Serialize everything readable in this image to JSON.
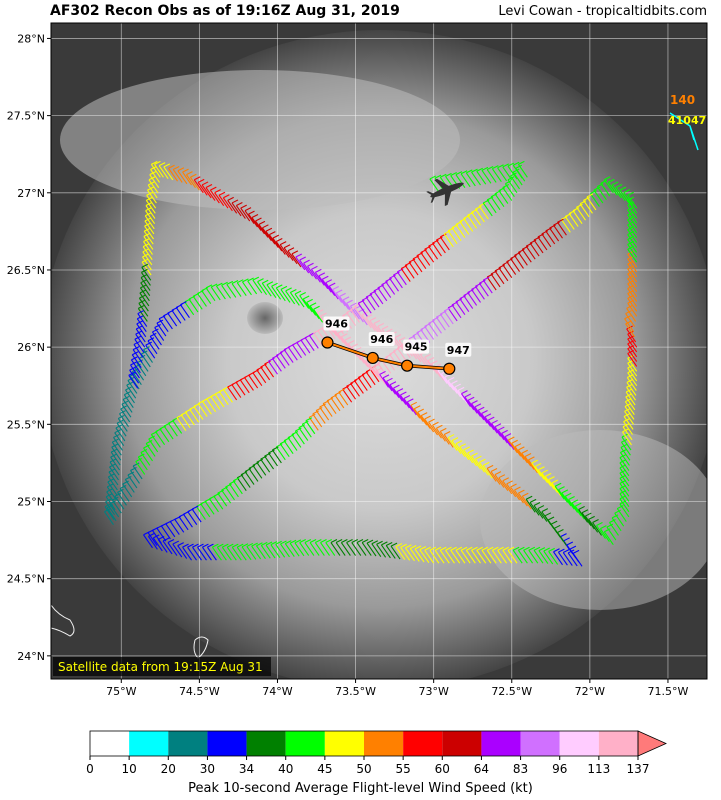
{
  "header": {
    "title": "AF302 Recon Obs as of 19:16Z Aug 31, 2019",
    "credit": "Levi Cowan - tropicaltidbits.com"
  },
  "satellite_note": "Satellite data from 19:15Z Aug 31",
  "axes": {
    "lon_ticks": [
      "75°W",
      "74.5°W",
      "74°W",
      "73.5°W",
      "73°W",
      "72.5°W",
      "72°W",
      "71.5°W"
    ],
    "lat_ticks": [
      "28°N",
      "27.5°N",
      "27°N",
      "26.5°N",
      "26°N",
      "25.5°N",
      "25°N",
      "24.5°N",
      "24°N"
    ],
    "lon_range": [
      -75.45,
      -71.25
    ],
    "lat_range": [
      23.85,
      28.1
    ]
  },
  "pressure_obs": [
    {
      "label": "946",
      "lon": -73.68,
      "lat": 26.03
    },
    {
      "label": "946",
      "lon": -73.39,
      "lat": 25.93
    },
    {
      "label": "945",
      "lon": -73.17,
      "lat": 25.88
    },
    {
      "label": "947",
      "lon": -72.9,
      "lat": 25.86
    }
  ],
  "buoy": {
    "id": "41047",
    "value": "140",
    "lon": -71.45,
    "lat": 27.48
  },
  "flight_track": [
    {
      "lon": -74.73,
      "lat": 27.1,
      "color": "#ffff00"
    },
    {
      "lon": -74.55,
      "lat": 27.05,
      "color": "#ff8000"
    },
    {
      "lon": -74.4,
      "lat": 26.95,
      "color": "#ff0000"
    },
    {
      "lon": -74.15,
      "lat": 26.8,
      "color": "#cc0000"
    },
    {
      "lon": -73.95,
      "lat": 26.6,
      "color": "#cc0000"
    },
    {
      "lon": -73.7,
      "lat": 26.4,
      "color": "#aa00ff"
    },
    {
      "lon": -73.5,
      "lat": 26.2,
      "color": "#d070ff"
    },
    {
      "lon": -73.3,
      "lat": 26.05,
      "color": "#ffb0c8"
    },
    {
      "lon": -73.0,
      "lat": 25.85,
      "color": "#ffb0c8"
    },
    {
      "lon": -72.85,
      "lat": 25.7,
      "color": "#ffccff"
    },
    {
      "lon": -72.7,
      "lat": 25.55,
      "color": "#aa00ff"
    },
    {
      "lon": -72.55,
      "lat": 25.4,
      "color": "#aa00ff"
    },
    {
      "lon": -72.4,
      "lat": 25.25,
      "color": "#ff8000"
    },
    {
      "lon": -72.25,
      "lat": 25.1,
      "color": "#ffff00"
    },
    {
      "lon": -72.1,
      "lat": 24.95,
      "color": "#00ff00"
    },
    {
      "lon": -71.95,
      "lat": 24.8,
      "color": "#008000"
    },
    {
      "lon": -71.85,
      "lat": 24.72,
      "color": "#00ff00"
    },
    {
      "lon": -71.75,
      "lat": 24.9,
      "color": "#00ff00"
    },
    {
      "lon": -71.75,
      "lat": 25.2,
      "color": "#00ff00"
    },
    {
      "lon": -71.72,
      "lat": 25.5,
      "color": "#ffff00"
    },
    {
      "lon": -71.7,
      "lat": 25.75,
      "color": "#ffff00"
    },
    {
      "lon": -71.7,
      "lat": 26.0,
      "color": "#ff0000"
    },
    {
      "lon": -71.72,
      "lat": 26.1,
      "color": "#ff8000"
    },
    {
      "lon": -71.7,
      "lat": 26.2,
      "color": "#ff8000"
    },
    {
      "lon": -71.7,
      "lat": 26.9,
      "color": "#00ff00"
    },
    {
      "lon": -71.85,
      "lat": 27.0,
      "color": "#00ff00"
    },
    {
      "lon": -72.05,
      "lat": 26.8,
      "color": "#ffff00"
    },
    {
      "lon": -72.25,
      "lat": 26.65,
      "color": "#cc0000"
    },
    {
      "lon": -72.5,
      "lat": 26.45,
      "color": "#cc0000"
    },
    {
      "lon": -72.75,
      "lat": 26.25,
      "color": "#aa00ff"
    },
    {
      "lon": -73.0,
      "lat": 26.05,
      "color": "#d070ff"
    },
    {
      "lon": -73.25,
      "lat": 25.85,
      "color": "#ffb0c8"
    },
    {
      "lon": -73.45,
      "lat": 25.7,
      "color": "#ff0000"
    },
    {
      "lon": -73.65,
      "lat": 25.55,
      "color": "#ff8000"
    },
    {
      "lon": -73.85,
      "lat": 25.35,
      "color": "#00ff00"
    },
    {
      "lon": -74.1,
      "lat": 25.15,
      "color": "#008000"
    },
    {
      "lon": -74.35,
      "lat": 24.95,
      "color": "#00ff00"
    },
    {
      "lon": -74.6,
      "lat": 24.8,
      "color": "#0000ff"
    },
    {
      "lon": -74.8,
      "lat": 24.7,
      "color": "#0000ff"
    },
    {
      "lon": -74.55,
      "lat": 24.62,
      "color": "#0000ff"
    },
    {
      "lon": -74.2,
      "lat": 24.62,
      "color": "#00ff00"
    },
    {
      "lon": -73.8,
      "lat": 24.65,
      "color": "#00ff00"
    },
    {
      "lon": -73.4,
      "lat": 24.65,
      "color": "#008000"
    },
    {
      "lon": -73.0,
      "lat": 24.6,
      "color": "#ffff00"
    },
    {
      "lon": -72.6,
      "lat": 24.6,
      "color": "#ffff00"
    },
    {
      "lon": -72.3,
      "lat": 24.6,
      "color": "#00ff00"
    },
    {
      "lon": -72.05,
      "lat": 24.58,
      "color": "#0000ff"
    },
    {
      "lon": -72.25,
      "lat": 24.85,
      "color": "#008000"
    },
    {
      "lon": -72.5,
      "lat": 25.05,
      "color": "#ff8000"
    },
    {
      "lon": -72.75,
      "lat": 25.25,
      "color": "#ffff00"
    },
    {
      "lon": -73.0,
      "lat": 25.45,
      "color": "#ff8000"
    },
    {
      "lon": -73.2,
      "lat": 25.65,
      "color": "#aa00ff"
    },
    {
      "lon": -73.4,
      "lat": 25.85,
      "color": "#ffb0c8"
    },
    {
      "lon": -73.6,
      "lat": 26.05,
      "color": "#ffb0c8"
    },
    {
      "lon": -73.8,
      "lat": 26.25,
      "color": "#00ff00"
    },
    {
      "lon": -74.1,
      "lat": 26.35,
      "color": "#00ff00"
    },
    {
      "lon": -74.4,
      "lat": 26.3,
      "color": "#00ff00"
    },
    {
      "lon": -74.7,
      "lat": 26.1,
      "color": "#0000ff"
    },
    {
      "lon": -74.9,
      "lat": 25.7,
      "color": "#008080"
    },
    {
      "lon": -75.0,
      "lat": 25.3,
      "color": "#008080"
    },
    {
      "lon": -75.05,
      "lat": 24.85,
      "color": "#008080"
    },
    {
      "lon": -74.95,
      "lat": 25.0,
      "color": "#008080"
    },
    {
      "lon": -74.75,
      "lat": 25.35,
      "color": "#00ff00"
    },
    {
      "lon": -74.45,
      "lat": 25.55,
      "color": "#ffff00"
    },
    {
      "lon": -74.1,
      "lat": 25.75,
      "color": "#ff0000"
    },
    {
      "lon": -73.9,
      "lat": 25.9,
      "color": "#aa00ff"
    },
    {
      "lon": -73.55,
      "lat": 26.1,
      "color": "#ffb0c8"
    },
    {
      "lon": -73.3,
      "lat": 26.3,
      "color": "#aa00ff"
    },
    {
      "lon": -73.0,
      "lat": 26.55,
      "color": "#ff0000"
    },
    {
      "lon": -72.75,
      "lat": 26.75,
      "color": "#ffff00"
    },
    {
      "lon": -72.5,
      "lat": 26.95,
      "color": "#00ff00"
    },
    {
      "lon": -72.4,
      "lat": 27.1,
      "color": "#00ff00"
    },
    {
      "lon": -72.7,
      "lat": 27.05,
      "color": "#00ff00"
    },
    {
      "lon": -73.0,
      "lat": 27.0,
      "color": "#00ff00"
    }
  ],
  "sw_leg": [
    {
      "lon": -74.75,
      "lat": 27.1,
      "color": "#ffff00"
    },
    {
      "lon": -74.78,
      "lat": 26.9,
      "color": "#ffff00"
    },
    {
      "lon": -74.8,
      "lat": 26.6,
      "color": "#ffff00"
    },
    {
      "lon": -74.82,
      "lat": 26.3,
      "color": "#008000"
    },
    {
      "lon": -74.85,
      "lat": 26.0,
      "color": "#0000ff"
    },
    {
      "lon": -74.9,
      "lat": 25.7,
      "color": "#0000ff"
    }
  ],
  "colorbar": {
    "ticks": [
      "0",
      "10",
      "20",
      "30",
      "34",
      "40",
      "45",
      "50",
      "55",
      "60",
      "64",
      "83",
      "96",
      "113",
      "137"
    ],
    "colors": [
      "#ffffff",
      "#00ffff",
      "#008080",
      "#0000ff",
      "#008000",
      "#00ff00",
      "#ffff00",
      "#ff8000",
      "#ff0000",
      "#cc0000",
      "#aa00ff",
      "#d070ff",
      "#ffccff",
      "#ffb0c8"
    ],
    "label": "Peak 10-second Average Flight-level Wind Speed (kt)"
  }
}
